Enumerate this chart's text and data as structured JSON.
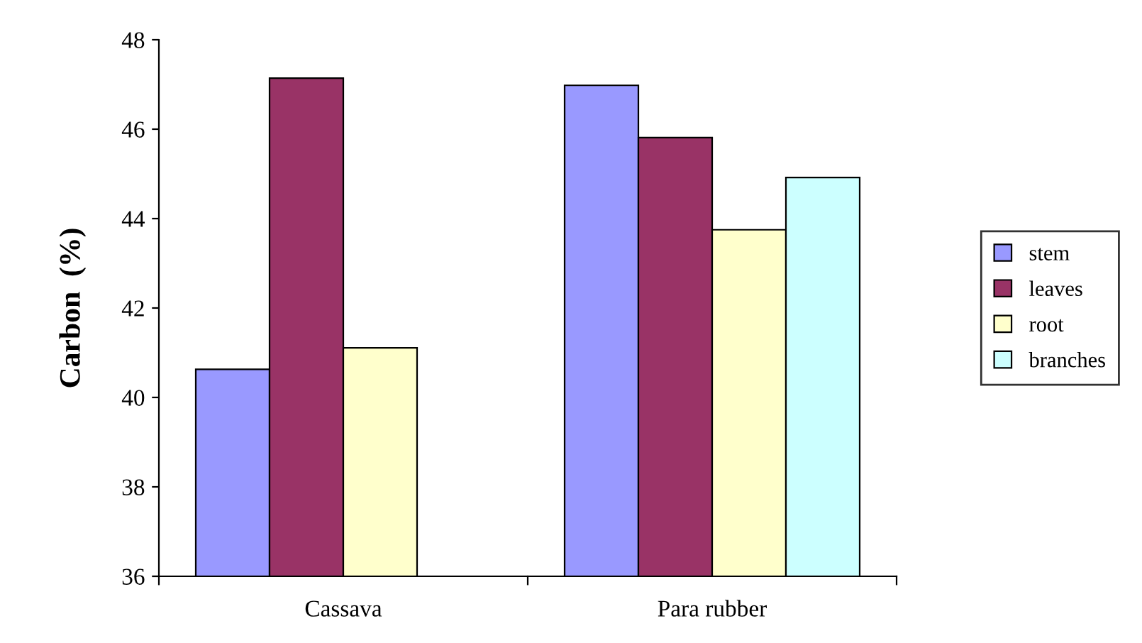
{
  "chart_data": {
    "type": "bar",
    "ylabel": "Carbon  (%)",
    "categories": [
      "Cassava",
      "Para rubber"
    ],
    "series": [
      {
        "name": "stem",
        "color": "#9999ff",
        "values": [
          40.63,
          46.98
        ]
      },
      {
        "name": "leaves",
        "color": "#993366",
        "values": [
          47.14,
          45.81
        ]
      },
      {
        "name": "root",
        "color": "#ffffcc",
        "values": [
          41.11,
          43.75
        ]
      },
      {
        "name": "branches",
        "color": "#ccffff",
        "values": [
          null,
          44.92
        ]
      }
    ],
    "ylim": [
      36,
      48
    ],
    "yticks": [
      36,
      38,
      40,
      42,
      44,
      46,
      48
    ],
    "grid": false,
    "legend": "right"
  }
}
